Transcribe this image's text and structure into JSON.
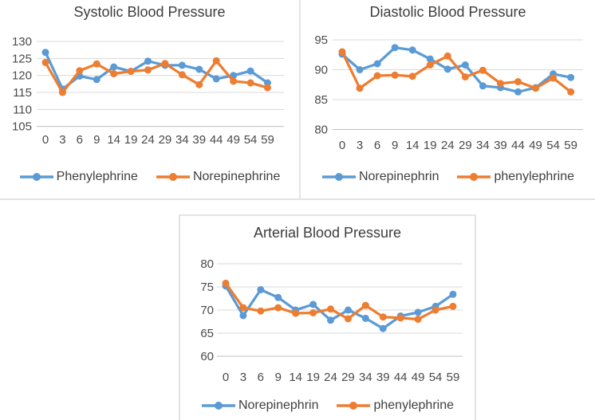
{
  "colors": {
    "series_blue": "#5B9BD5",
    "series_orange": "#ED7D31",
    "gridline": "#D9D9D9",
    "axis_line": "#BFBFBF",
    "text": "#4a4a4a",
    "divider": "#e4e4e4"
  },
  "chart_data": [
    {
      "id": "systolic",
      "type": "line",
      "title": "Systolic Blood Pressure",
      "categories": [
        "0",
        "3",
        "6",
        "9",
        "14",
        "19",
        "24",
        "29",
        "34",
        "39",
        "44",
        "49",
        "54",
        "59"
      ],
      "yticks": [
        105,
        110,
        115,
        120,
        125,
        130
      ],
      "ylim": [
        105,
        130
      ],
      "grid": true,
      "legend_position": "bottom",
      "series": [
        {
          "name": "Phenylephrine",
          "color": "#5B9BD5",
          "values": [
            126.8,
            116.0,
            119.8,
            118.8,
            122.5,
            121.2,
            124.2,
            123.0,
            123.0,
            121.8,
            119.0,
            120.0,
            121.3,
            117.8
          ]
        },
        {
          "name": "Norepinephrine",
          "color": "#ED7D31",
          "values": [
            123.8,
            115.0,
            121.4,
            123.4,
            120.5,
            121.2,
            121.6,
            123.5,
            120.2,
            117.3,
            124.3,
            118.3,
            117.8,
            116.4
          ]
        }
      ]
    },
    {
      "id": "diastolic",
      "type": "line",
      "title": "Diastolic Blood Pressure",
      "categories": [
        "0",
        "3",
        "6",
        "9",
        "14",
        "19",
        "24",
        "29",
        "34",
        "39",
        "44",
        "49",
        "54",
        "59"
      ],
      "yticks": [
        80,
        85,
        90,
        95
      ],
      "ylim": [
        80,
        95
      ],
      "grid": true,
      "legend_position": "bottom",
      "series": [
        {
          "name": "Norepinephrin",
          "color": "#5B9BD5",
          "values": [
            92.6,
            90.0,
            91.0,
            93.7,
            93.3,
            91.8,
            90.1,
            90.8,
            87.3,
            87.0,
            86.3,
            87.0,
            89.3,
            88.7
          ]
        },
        {
          "name": "phenylephrine",
          "color": "#ED7D31",
          "values": [
            93.0,
            86.9,
            89.0,
            89.1,
            88.9,
            90.8,
            92.3,
            88.8,
            89.9,
            87.7,
            88.0,
            86.9,
            88.6,
            86.3
          ]
        }
      ]
    },
    {
      "id": "arterial",
      "type": "line",
      "title": "Arterial Blood Pressure",
      "categories": [
        "0",
        "3",
        "6",
        "9",
        "14",
        "19",
        "24",
        "29",
        "34",
        "39",
        "44",
        "49",
        "54",
        "59"
      ],
      "yticks": [
        60,
        65,
        70,
        75,
        80
      ],
      "ylim": [
        60,
        80
      ],
      "grid": true,
      "legend_position": "bottom",
      "series": [
        {
          "name": "Norepinephrin",
          "color": "#5B9BD5",
          "values": [
            75.2,
            68.8,
            74.4,
            72.7,
            70.0,
            71.2,
            67.8,
            70.0,
            68.2,
            66.0,
            68.7,
            69.5,
            70.8,
            73.4
          ]
        },
        {
          "name": "phenylephrine",
          "color": "#ED7D31",
          "values": [
            75.8,
            70.5,
            69.8,
            70.5,
            69.3,
            69.4,
            70.2,
            68.1,
            71.0,
            68.5,
            68.3,
            68.0,
            70.0,
            70.8
          ]
        }
      ]
    }
  ]
}
